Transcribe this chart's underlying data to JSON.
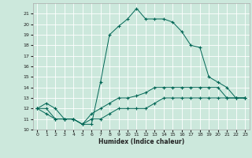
{
  "xlabel": "Humidex (Indice chaleur)",
  "background_color": "#cce8dc",
  "grid_color": "#ffffff",
  "line_color": "#006655",
  "hours": [
    0,
    1,
    2,
    3,
    4,
    5,
    6,
    7,
    8,
    9,
    10,
    11,
    12,
    13,
    14,
    15,
    16,
    17,
    18,
    19,
    20,
    21,
    22,
    23
  ],
  "line1": [
    12,
    12.5,
    12,
    11,
    11,
    10.5,
    10.5,
    14.5,
    19,
    19.8,
    20.5,
    21.5,
    20.5,
    20.5,
    20.5,
    20.2,
    19.3,
    18,
    17.8,
    15,
    14.5,
    14,
    13,
    13
  ],
  "line2": [
    12,
    12,
    11,
    11,
    11,
    10.5,
    11.5,
    12,
    12.5,
    13,
    13,
    13.2,
    13.5,
    14,
    14,
    14,
    14,
    14,
    14,
    14,
    14,
    13,
    13,
    13
  ],
  "line3": [
    12,
    11.5,
    11,
    11,
    11,
    10.5,
    11,
    11,
    11.5,
    12,
    12,
    12,
    12,
    12.5,
    13,
    13,
    13,
    13,
    13,
    13,
    13,
    13,
    13,
    13
  ],
  "ylim": [
    10,
    22
  ],
  "xlim": [
    -0.5,
    23.5
  ],
  "yticks": [
    10,
    11,
    12,
    13,
    14,
    15,
    16,
    17,
    18,
    19,
    20,
    21
  ],
  "xticks": [
    0,
    1,
    2,
    3,
    4,
    5,
    6,
    7,
    8,
    9,
    10,
    11,
    12,
    13,
    14,
    15,
    16,
    17,
    18,
    19,
    20,
    21,
    22,
    23
  ]
}
